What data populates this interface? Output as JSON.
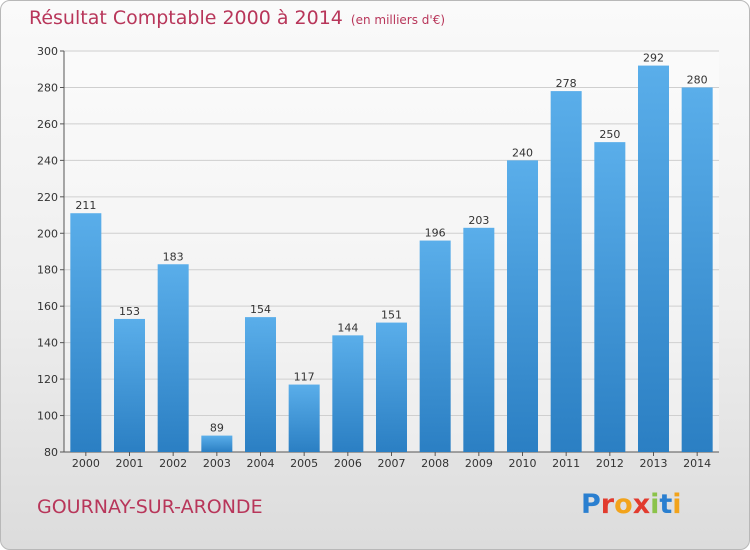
{
  "header": {
    "title": "Résultat Comptable 2000 à 2014",
    "subtitle": "(en milliers d'€)"
  },
  "footer": {
    "commune": "GOURNAY-SUR-ARONDE",
    "logo_text": "Proxiti",
    "logo_colors": [
      "#2a7fd0",
      "#e23b2e",
      "#f2a31b",
      "#e23b2e",
      "#8bc34a",
      "#2a7fd0",
      "#f2a31b"
    ]
  },
  "chart_data": {
    "type": "bar",
    "categories": [
      "2000",
      "2001",
      "2002",
      "2003",
      "2004",
      "2005",
      "2006",
      "2007",
      "2008",
      "2009",
      "2010",
      "2011",
      "2012",
      "2013",
      "2014"
    ],
    "values": [
      211,
      153,
      183,
      89,
      154,
      117,
      144,
      151,
      196,
      203,
      240,
      278,
      250,
      292,
      280
    ],
    "ylim": [
      80,
      300
    ],
    "yticks": [
      80,
      100,
      120,
      140,
      160,
      180,
      200,
      220,
      240,
      260,
      280,
      300
    ],
    "grid": true,
    "bar_color_top": "#5aaeea",
    "bar_color_bottom": "#2b7fc3"
  }
}
